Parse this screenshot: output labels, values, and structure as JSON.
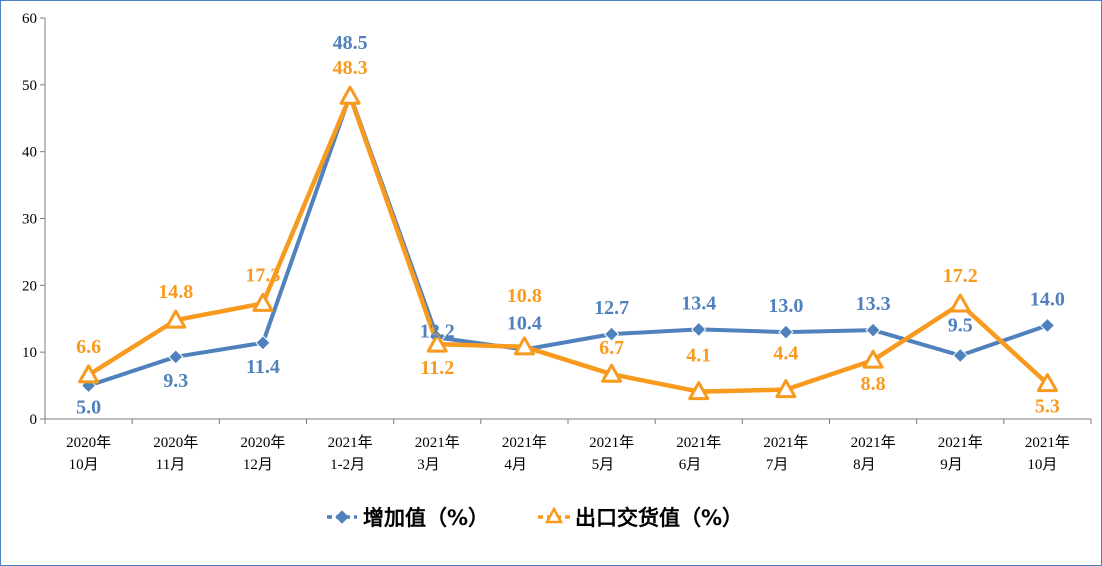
{
  "chart_data": {
    "type": "line",
    "categories": [
      [
        "2020年",
        "10月"
      ],
      [
        "2020年",
        "11月"
      ],
      [
        "2020年",
        "12月"
      ],
      [
        "2021年",
        "1-2月"
      ],
      [
        "2021年",
        "3月"
      ],
      [
        "2021年",
        "4月"
      ],
      [
        "2021年",
        "5月"
      ],
      [
        "2021年",
        "6月"
      ],
      [
        "2021年",
        "7月"
      ],
      [
        "2021年",
        "8月"
      ],
      [
        "2021年",
        "9月"
      ],
      [
        "2021年",
        "10月"
      ]
    ],
    "series": [
      {
        "name": "增加值（%）",
        "values": [
          5.0,
          9.3,
          11.4,
          48.5,
          12.2,
          10.4,
          12.7,
          13.4,
          13.0,
          13.3,
          9.5,
          14.0
        ],
        "labels": [
          "5.0",
          "9.3",
          "11.4",
          "48.5",
          "12.2",
          "10.4",
          "12.7",
          "13.4",
          "13.0",
          "13.3",
          "9.5",
          "14.0"
        ],
        "color": "#4f81bd",
        "marker": "diamond"
      },
      {
        "name": "出口交货值（%）",
        "values": [
          6.6,
          14.8,
          17.3,
          48.3,
          11.2,
          10.8,
          6.7,
          4.1,
          4.4,
          8.8,
          17.2,
          5.3
        ],
        "labels": [
          "6.6",
          "14.8",
          "17.3",
          "48.3",
          "11.2",
          "10.8",
          "6.7",
          "4.1",
          "4.4",
          "8.8",
          "17.2",
          "5.3"
        ],
        "color": "#f79a1e",
        "marker": "triangle"
      }
    ],
    "y_ticks": [
      "0",
      "10",
      "20",
      "30",
      "40",
      "50",
      "60"
    ],
    "ylim": [
      0,
      60
    ],
    "grid": false,
    "legend_position": "bottom"
  }
}
